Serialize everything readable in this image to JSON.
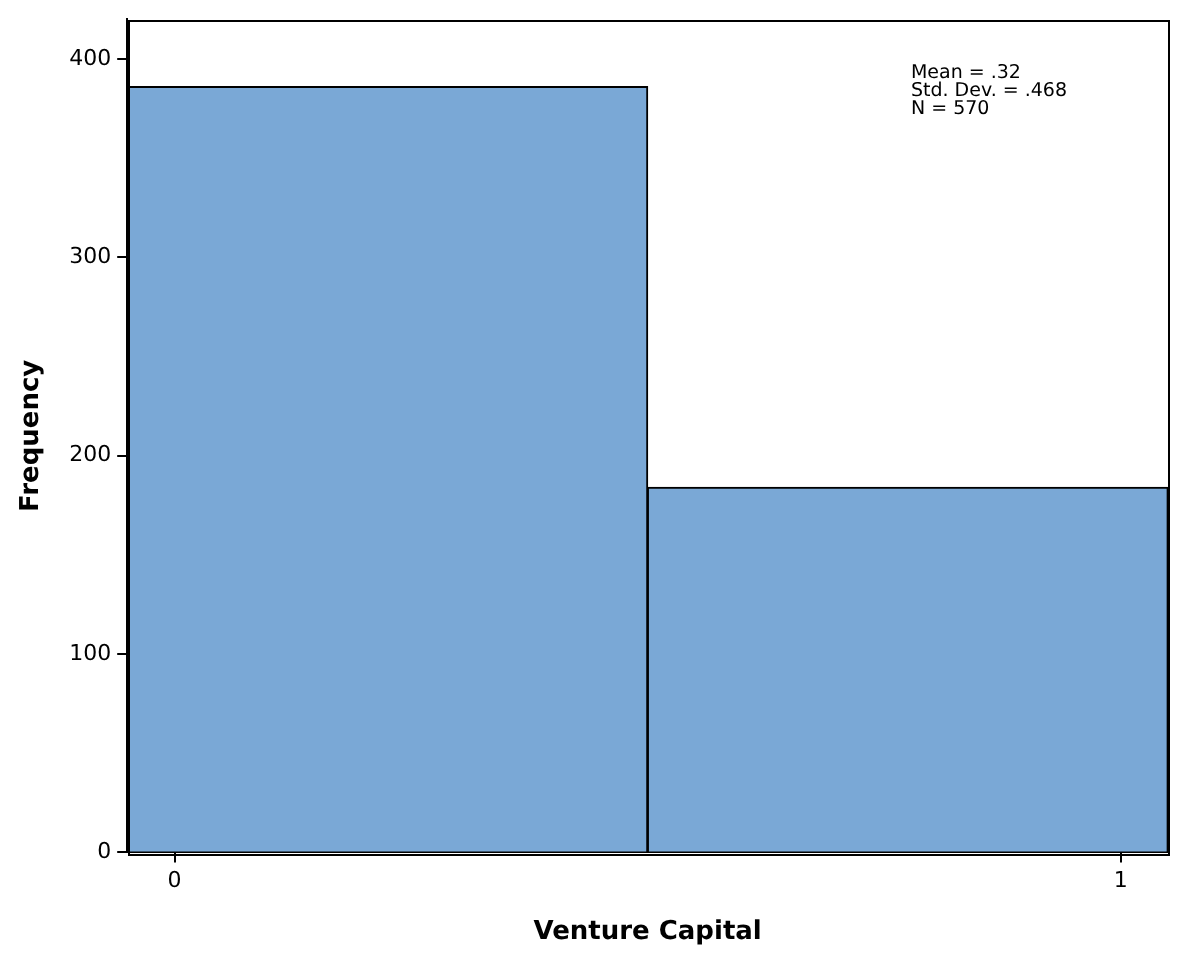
{
  "chart_data": {
    "type": "histogram",
    "xlabel": "Venture Capital",
    "ylabel": "Frequency",
    "bins": [
      -0.05,
      0.5,
      1.05
    ],
    "values": [
      386,
      184
    ],
    "color": "#7aa8d6",
    "xlim": [
      -0.05,
      1.05
    ],
    "xticks": [
      0,
      1
    ],
    "ylim": [
      0,
      420
    ],
    "yticks": [
      0,
      100,
      200,
      300,
      400
    ],
    "grid": false,
    "legend": false,
    "annotations": [
      "Mean = .32",
      "Std. Dev. = .468",
      "N = 570"
    ]
  }
}
